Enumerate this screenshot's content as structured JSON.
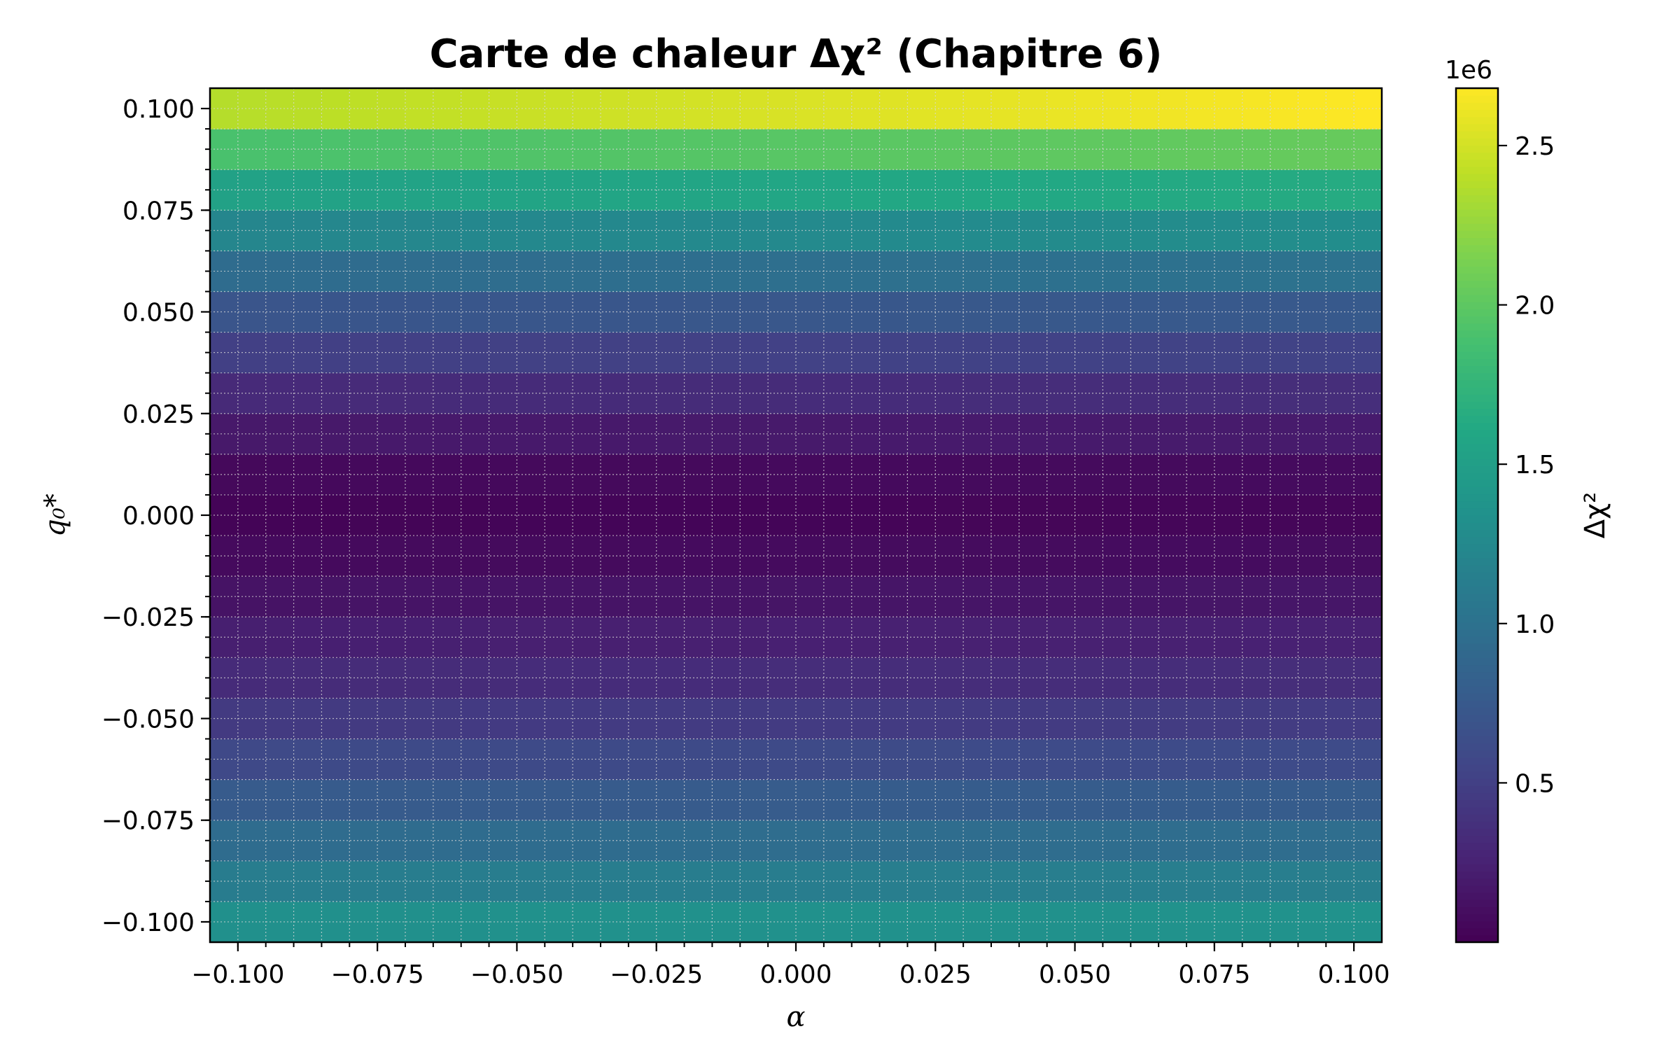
{
  "chart_data": {
    "type": "heatmap",
    "title": "Carte de chaleur Δχ² (Chapitre 6)",
    "xlabel": "α",
    "ylabel": "q₀*",
    "x_range": [
      -0.105,
      0.105
    ],
    "y_range": [
      -0.105,
      0.105
    ],
    "x_ticks": [
      -0.1,
      -0.075,
      -0.05,
      -0.025,
      0.0,
      0.025,
      0.05,
      0.075,
      0.1
    ],
    "x_tick_labels": [
      "−0.100",
      "−0.075",
      "−0.050",
      "−0.025",
      "0.000",
      "0.025",
      "0.050",
      "0.075",
      "0.100"
    ],
    "y_ticks": [
      -0.1,
      -0.075,
      -0.05,
      -0.025,
      0.0,
      0.025,
      0.05,
      0.075,
      0.1
    ],
    "y_tick_labels": [
      "−0.100",
      "−0.075",
      "−0.050",
      "−0.025",
      "0.000",
      "0.025",
      "0.050",
      "0.075",
      "0.100"
    ],
    "grid": true,
    "x_cells": 42,
    "y_values": [
      -0.1,
      -0.09,
      -0.08,
      -0.07,
      -0.06,
      -0.05,
      -0.04,
      -0.03,
      -0.02,
      -0.01,
      0.0,
      0.01,
      0.02,
      0.03,
      0.04,
      0.05,
      0.06,
      0.07,
      0.08,
      0.09,
      0.1
    ],
    "row_values_left": [
      1330000,
      1120000,
      940000,
      760000,
      590000,
      450000,
      330000,
      230000,
      140000,
      70000,
      25000,
      60000,
      180000,
      320000,
      500000,
      700000,
      940000,
      1220000,
      1530000,
      1900000,
      2380000
    ],
    "row_values_right": [
      1350000,
      1140000,
      960000,
      780000,
      610000,
      470000,
      350000,
      250000,
      160000,
      90000,
      40000,
      80000,
      200000,
      350000,
      530000,
      750000,
      1010000,
      1300000,
      1640000,
      2050000,
      2680000
    ],
    "colormap": "viridis",
    "colorbar": {
      "label": "Δχ²",
      "range": [
        0,
        2680000
      ],
      "offset_text": "1e6",
      "ticks": [
        0.5,
        1.0,
        1.5,
        2.0,
        2.5
      ],
      "tick_labels": [
        "0.5",
        "1.0",
        "1.5",
        "2.0",
        "2.5"
      ]
    }
  }
}
